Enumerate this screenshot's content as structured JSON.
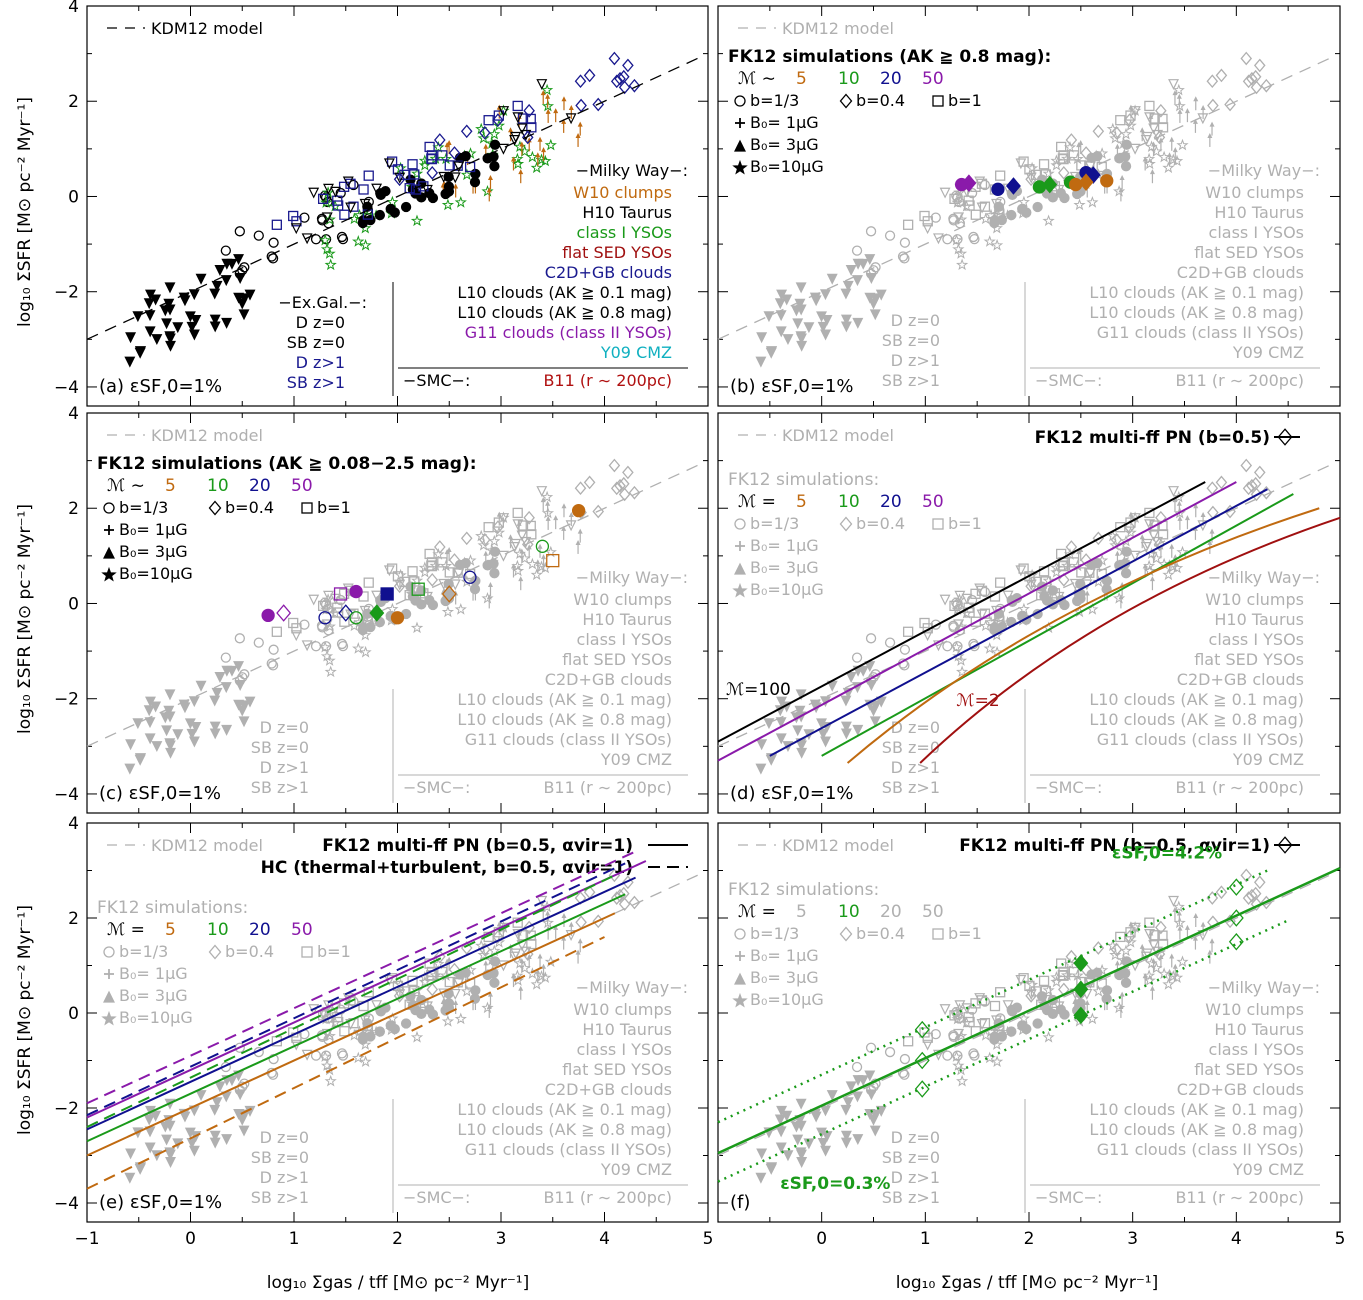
{
  "figure": {
    "xlabel": "log₁₀ Σgas / tff [M⊙ pc⁻² Myr⁻¹]",
    "ylabel": "log₁₀ ΣSFR [M⊙ pc⁻² Myr⁻¹]"
  },
  "chart_data": [
    {
      "type": "scatter",
      "panel_label": "(a) εSF,0=1%",
      "xlim": [
        -1,
        5
      ],
      "ylim": [
        -4.4,
        4
      ],
      "xticks": [
        "−1",
        "0",
        "1",
        "2",
        "3",
        "4",
        "5"
      ],
      "yticks": [
        "−4",
        "−2",
        "0",
        "2",
        "4"
      ],
      "legend": {
        "model": "KDM12 model",
        "milky_way_header": "−Milky Way−:",
        "milky_way": [
          "W10 clumps",
          "H10 Taurus",
          "class I YSOs",
          "flat SED YSOs",
          "C2D+GB clouds",
          "L10 clouds (AK ≧ 0.1 mag)",
          "L10 clouds (AK ≧ 0.8 mag)",
          "G11 clouds (class II YSOs)",
          "Y09 CMZ"
        ],
        "smc": "−SMC−:",
        "smc_entry": "B11 (r ∼ 200pc)",
        "exgal_header": "−Ex.Gal.−:",
        "exgal": [
          "D z=0",
          "SB z=0",
          "D z>1",
          "SB z>1"
        ]
      },
      "model_line": {
        "x": [
          -1,
          4.9
        ],
        "y": [
          -3.0,
          2.9
        ]
      }
    },
    {
      "type": "scatter",
      "panel_label": "(b) εSF,0=1%",
      "sim_header": "FK12 simulations (AK ≧ 0.8 mag):",
      "mach_prefix": "ℳ ∼",
      "mach": [
        "5",
        "10",
        "20",
        "50"
      ],
      "b_labels": [
        "b=1/3",
        "b=0.4",
        "b=1"
      ],
      "B_labels": [
        "B₀=  1μG",
        "B₀=  3μG",
        "B₀=10μG"
      ],
      "sim_points": [
        {
          "mach": "50",
          "x": [
            1.35,
            1.42
          ],
          "y": [
            0.25,
            0.28
          ]
        },
        {
          "mach": "20",
          "x": [
            1.7,
            1.85,
            2.55,
            2.62
          ],
          "y": [
            0.15,
            0.22,
            0.5,
            0.45
          ]
        },
        {
          "mach": "10",
          "x": [
            2.1,
            2.2,
            2.4
          ],
          "y": [
            0.2,
            0.25,
            0.3
          ]
        },
        {
          "mach": "5",
          "x": [
            2.45,
            2.55,
            2.75
          ],
          "y": [
            0.25,
            0.3,
            0.33
          ]
        }
      ]
    },
    {
      "type": "scatter",
      "panel_label": "(c) εSF,0=1%",
      "sim_header": "FK12 simulations (AK ≧ 0.08−2.5 mag):",
      "mach_prefix": "ℳ ∼",
      "mach": [
        "5",
        "10",
        "20",
        "50"
      ]
    },
    {
      "type": "line",
      "panel_label": "(d) εSF,0=1%",
      "title": "FK12 multi-ff PN (b=0.5)",
      "sim_header": "FK12 simulations:",
      "mach_prefix": "ℳ =",
      "mach": [
        "5",
        "10",
        "20",
        "50"
      ],
      "annotations": [
        "ℳ=100",
        "ℳ=2"
      ]
    },
    {
      "type": "line",
      "panel_label": "(e) εSF,0=1%",
      "title": "FK12 multi-ff PN (b=0.5, αvir=1)",
      "title2": "HC (thermal+turbulent, b=0.5, αvir=1)",
      "sim_header": "FK12 simulations:",
      "mach_prefix": "ℳ =",
      "mach": [
        "5",
        "10",
        "20",
        "50"
      ]
    },
    {
      "type": "line",
      "panel_label": "(f)",
      "title": "FK12 multi-ff PN (b=0.5, αvir=1)",
      "sim_header": "FK12 simulations:",
      "mach_prefix": "ℳ =",
      "mach": [
        "5",
        "10",
        "20",
        "50"
      ],
      "annotations": [
        "εSF,0=4.2%",
        "εSF,0=0.3%"
      ]
    }
  ],
  "colors": {
    "m5": "#c06a10",
    "m10": "#1a9a1a",
    "m20": "#10108f",
    "m50": "#8a1aaa",
    "m2": "#a01010",
    "m100": "#000000",
    "gray": "#b0b0b0",
    "orange_arrow": "#c06a10",
    "green_star": "#1a9a1a",
    "red_star": "#a01010",
    "navy": "#1a1a8f",
    "purple": "#8a1aaa",
    "cyan": "#10b0c0",
    "smc_red": "#b01010"
  }
}
